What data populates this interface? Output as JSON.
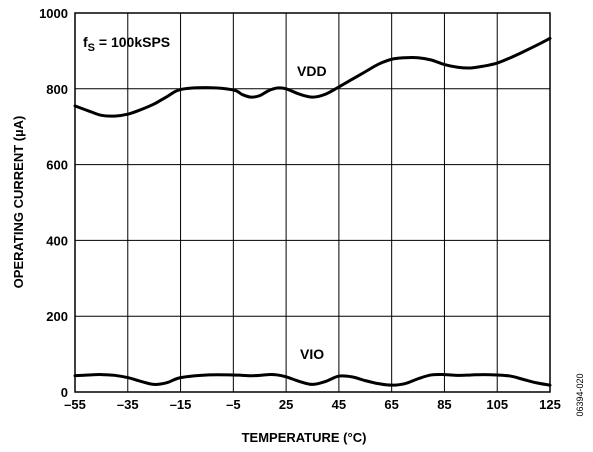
{
  "chart_data": {
    "type": "line",
    "xlabel": "TEMPERATURE (°C)",
    "ylabel": "OPERATING CURRENT (µA)",
    "xlim": [
      -55,
      125
    ],
    "ylim": [
      0,
      1000
    ],
    "x_ticks": [
      -55,
      -35,
      -15,
      -5,
      25,
      45,
      65,
      85,
      105,
      125
    ],
    "x_tick_labels": [
      "–55",
      "–35",
      "–15",
      "–5",
      "25",
      "45",
      "65",
      "85",
      "105",
      "125"
    ],
    "y_ticks": [
      0,
      200,
      400,
      600,
      800,
      1000
    ],
    "y_tick_labels": [
      "0",
      "200",
      "400",
      "600",
      "800",
      "1000"
    ],
    "grid": true,
    "annotation": {
      "main": "f",
      "subscript": "S",
      "rest": " = 100kSPS"
    },
    "figure_id": "06394-020",
    "series": [
      {
        "name": "VDD",
        "color": "#000000",
        "points": [
          [
            -55,
            755
          ],
          [
            -50,
            742
          ],
          [
            -45,
            730
          ],
          [
            -40,
            728
          ],
          [
            -35,
            733
          ],
          [
            -30,
            745
          ],
          [
            -25,
            760
          ],
          [
            -20,
            780
          ],
          [
            -15,
            798
          ],
          [
            -10,
            803
          ],
          [
            -5,
            797
          ],
          [
            0,
            785
          ],
          [
            5,
            778
          ],
          [
            10,
            782
          ],
          [
            15,
            795
          ],
          [
            20,
            802
          ],
          [
            25,
            800
          ],
          [
            30,
            786
          ],
          [
            35,
            778
          ],
          [
            40,
            786
          ],
          [
            45,
            805
          ],
          [
            50,
            825
          ],
          [
            55,
            845
          ],
          [
            60,
            865
          ],
          [
            65,
            878
          ],
          [
            70,
            882
          ],
          [
            75,
            882
          ],
          [
            80,
            876
          ],
          [
            85,
            864
          ],
          [
            90,
            857
          ],
          [
            95,
            855
          ],
          [
            100,
            860
          ],
          [
            105,
            868
          ],
          [
            110,
            882
          ],
          [
            115,
            898
          ],
          [
            120,
            915
          ],
          [
            125,
            933
          ]
        ]
      },
      {
        "name": "VIO",
        "color": "#000000",
        "points": [
          [
            -55,
            43
          ],
          [
            -50,
            45
          ],
          [
            -45,
            46
          ],
          [
            -40,
            44
          ],
          [
            -35,
            38
          ],
          [
            -30,
            28
          ],
          [
            -25,
            20
          ],
          [
            -20,
            25
          ],
          [
            -15,
            38
          ],
          [
            -10,
            45
          ],
          [
            -5,
            45
          ],
          [
            0,
            44
          ],
          [
            5,
            43
          ],
          [
            10,
            44
          ],
          [
            15,
            46
          ],
          [
            20,
            45
          ],
          [
            25,
            40
          ],
          [
            30,
            28
          ],
          [
            35,
            20
          ],
          [
            40,
            28
          ],
          [
            45,
            42
          ],
          [
            50,
            40
          ],
          [
            55,
            30
          ],
          [
            60,
            22
          ],
          [
            65,
            18
          ],
          [
            70,
            22
          ],
          [
            75,
            35
          ],
          [
            80,
            45
          ],
          [
            85,
            46
          ],
          [
            90,
            44
          ],
          [
            95,
            45
          ],
          [
            100,
            46
          ],
          [
            105,
            45
          ],
          [
            110,
            42
          ],
          [
            115,
            33
          ],
          [
            120,
            24
          ],
          [
            125,
            18
          ]
        ]
      }
    ]
  }
}
